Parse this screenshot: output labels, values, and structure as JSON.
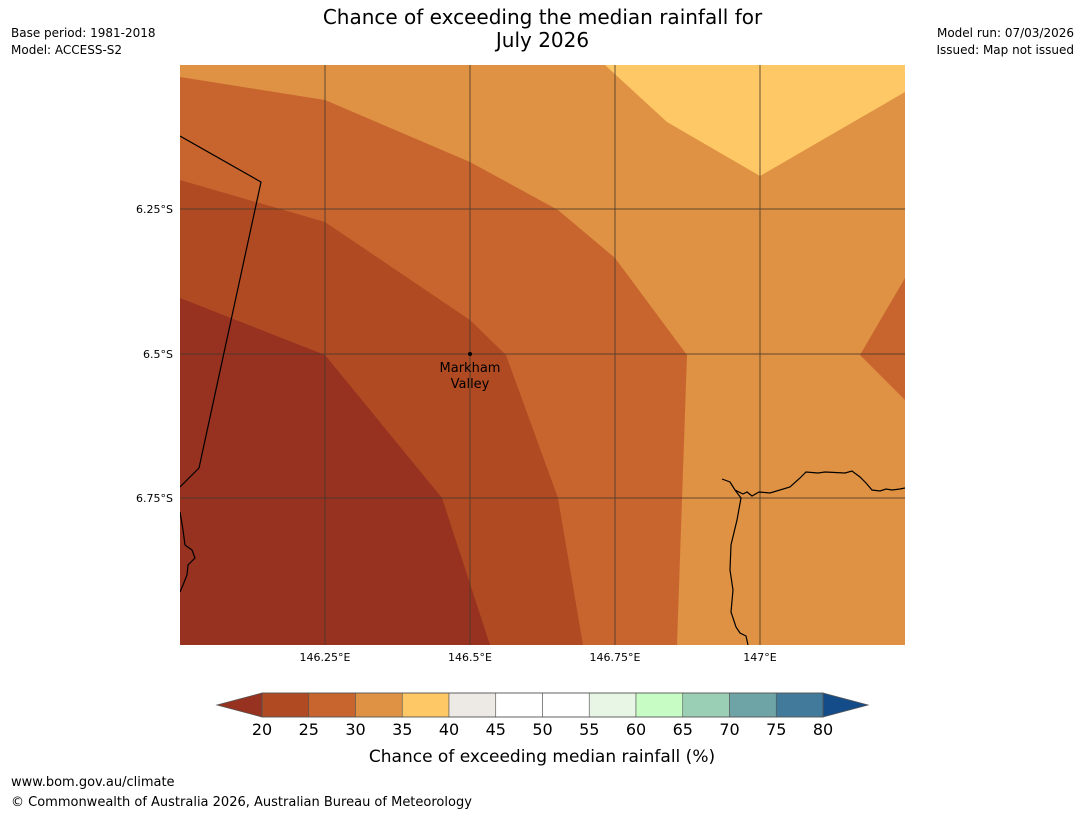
{
  "header": {
    "title_line1": "Chance of exceeding the median rainfall for",
    "title_line2": "July 2026",
    "base_period": "Base period: 1981-2018",
    "model": "Model: ACCESS-S2",
    "model_run": "Model run: 07/03/2026",
    "issued": "Issued: Map not issued"
  },
  "map": {
    "lat_labels": [
      "6.25°S",
      "6.5°S",
      "6.75°S"
    ],
    "lon_labels": [
      "146.25°E",
      "146.5°E",
      "146.75°E",
      "147°E"
    ],
    "place": {
      "name_line1": "Markham",
      "name_line2": "Valley"
    },
    "zones": [
      {
        "name": "map-zone-25-30",
        "color": "#c8652f"
      },
      {
        "name": "map-zone-20-25",
        "color": "#b04a22"
      },
      {
        "name": "map-zone-below-20",
        "color": "#96321f"
      },
      {
        "name": "map-zone-35-40",
        "color": "#fdc865"
      },
      {
        "name": "map-zone-30-35",
        "color": "#df9243"
      }
    ]
  },
  "colorbar": {
    "bins": [
      {
        "range": "20-25",
        "color": "#b04a22"
      },
      {
        "range": "25-30",
        "color": "#c8652f"
      },
      {
        "range": "30-35",
        "color": "#df9243"
      },
      {
        "range": "35-40",
        "color": "#fdc865"
      },
      {
        "range": "40-45",
        "color": "#ede9e4"
      },
      {
        "range": "45-50",
        "color": "#ffffff"
      },
      {
        "range": "50-55",
        "color": "#ffffff"
      },
      {
        "range": "55-60",
        "color": "#e8f6e6"
      },
      {
        "range": "60-65",
        "color": "#c7fdc5"
      },
      {
        "range": "65-70",
        "color": "#9bcfb5"
      },
      {
        "range": "70-75",
        "color": "#6ea4a6"
      },
      {
        "range": "75-80",
        "color": "#427a9b"
      }
    ],
    "low_color": "#96321f",
    "high_color": "#134c88",
    "ticks": [
      "20",
      "25",
      "30",
      "35",
      "40",
      "45",
      "50",
      "55",
      "60",
      "65",
      "70",
      "75",
      "80"
    ],
    "label": "Chance of exceeding median rainfall (%)"
  },
  "footer": {
    "url": "www.bom.gov.au/climate",
    "copyright": "© Commonwealth of Australia 2026, Australian Bureau of Meteorology"
  }
}
